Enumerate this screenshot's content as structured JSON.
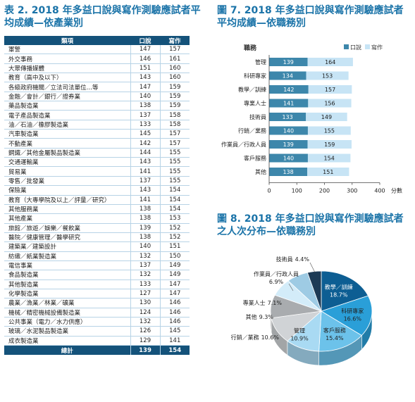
{
  "table": {
    "title": "表 2. 2018 年多益口說與寫作測驗應試者平均成績—依產業別",
    "headers": [
      "類項",
      "口說",
      "寫作"
    ],
    "rows": [
      [
        "軍警",
        "147",
        "157"
      ],
      [
        "外交事務",
        "146",
        "161"
      ],
      [
        "大眾傳播媒體",
        "151",
        "160"
      ],
      [
        "教育（高中及以下）",
        "143",
        "160"
      ],
      [
        "各級政府機關／立法司法單位…等",
        "147",
        "159"
      ],
      [
        "金融／會計／銀行／證券業",
        "140",
        "159"
      ],
      [
        "藥品製造業",
        "138",
        "159"
      ],
      [
        "電子產品製造業",
        "137",
        "158"
      ],
      [
        "油／石油／橡膠製造業",
        "133",
        "158"
      ],
      [
        "汽車製造業",
        "145",
        "157"
      ],
      [
        "不動產業",
        "142",
        "157"
      ],
      [
        "鋼鐵／其他金屬製品製造業",
        "144",
        "155"
      ],
      [
        "交通運輸業",
        "143",
        "155"
      ],
      [
        "貿易業",
        "141",
        "155"
      ],
      [
        "零售／批發業",
        "137",
        "155"
      ],
      [
        "保險業",
        "143",
        "154"
      ],
      [
        "教育（大專學院及以上／評量／研究）",
        "141",
        "154"
      ],
      [
        "其他服務業",
        "138",
        "154"
      ],
      [
        "其他產業",
        "138",
        "153"
      ],
      [
        "旅館／旅遊／娛樂／餐飲業",
        "139",
        "152"
      ],
      [
        "醫院／健康管理／醫學研究",
        "138",
        "152"
      ],
      [
        "建築業／建築設計",
        "140",
        "151"
      ],
      [
        "紡織／紙業製造業",
        "132",
        "150"
      ],
      [
        "電信事業",
        "137",
        "149"
      ],
      [
        "食品製造業",
        "132",
        "149"
      ],
      [
        "其他製造業",
        "133",
        "147"
      ],
      [
        "化學製造業",
        "127",
        "147"
      ],
      [
        "農業／漁業／林業／礦業",
        "130",
        "146"
      ],
      [
        "機械／精密機械設備製造業",
        "124",
        "146"
      ],
      [
        "公共事業（電力／水力供應）",
        "132",
        "146"
      ],
      [
        "玻璃／水泥製品製造業",
        "126",
        "145"
      ],
      [
        "成衣製造業",
        "129",
        "141"
      ]
    ],
    "total": [
      "總計",
      "139",
      "154"
    ]
  },
  "chart_data": [
    {
      "type": "bar",
      "orientation": "horizontal",
      "stacked": true,
      "title": "圖 7. 2018 年多益口說與寫作測驗應試者平均成績—依職務別",
      "ylabel": "職務",
      "xlabel": "分數",
      "categories": [
        "管理",
        "科研專家",
        "教學／訓練",
        "專業人士",
        "技術員",
        "行銷／業務",
        "作業員／行政人員",
        "客戶服務",
        "其他"
      ],
      "series": [
        {
          "name": "口說",
          "values": [
            139,
            134,
            142,
            141,
            133,
            140,
            139,
            140,
            138
          ],
          "color": "#3d87ab"
        },
        {
          "name": "寫作",
          "values": [
            164,
            153,
            157,
            156,
            149,
            155,
            159,
            154,
            151
          ],
          "color": "#c7e4f5"
        }
      ],
      "xlim": [
        0,
        400
      ],
      "xticks": [
        "0",
        "100",
        "200",
        "300",
        "400"
      ],
      "legend": "top-right",
      "grid": false
    },
    {
      "type": "pie",
      "title": "圖 8. 2018 年多益口說與寫作測驗應試者之人次分布—依職務別",
      "slices": [
        {
          "label": "教學／訓練",
          "value": 18.7,
          "text": "18.7%",
          "color": "#0d5e93"
        },
        {
          "label": "科研專家",
          "value": 16.6,
          "text": "16.6%",
          "color": "#2a9fd8"
        },
        {
          "label": "客戶服務",
          "value": 15.4,
          "text": "15.4%",
          "color": "#6cc2ea"
        },
        {
          "label": "管理",
          "value": 10.9,
          "text": "10.9%",
          "color": "#a9daf3"
        },
        {
          "label": "行銷／業務",
          "value": 10.6,
          "text": "10.6%",
          "color": "#d0d3d6"
        },
        {
          "label": "其他",
          "value": 9.3,
          "text": "9.3%",
          "color": "#a9acaf"
        },
        {
          "label": "專業人士",
          "value": 7.1,
          "text": "7.1%",
          "color": "#d3ecf9"
        },
        {
          "label": "作業員／行政人員",
          "value": 6.9,
          "text": "6.9%",
          "color": "#9ecbe4"
        },
        {
          "label": "技術員",
          "value": 4.4,
          "text": "4.4%",
          "color": "#1c3a55"
        }
      ]
    }
  ]
}
